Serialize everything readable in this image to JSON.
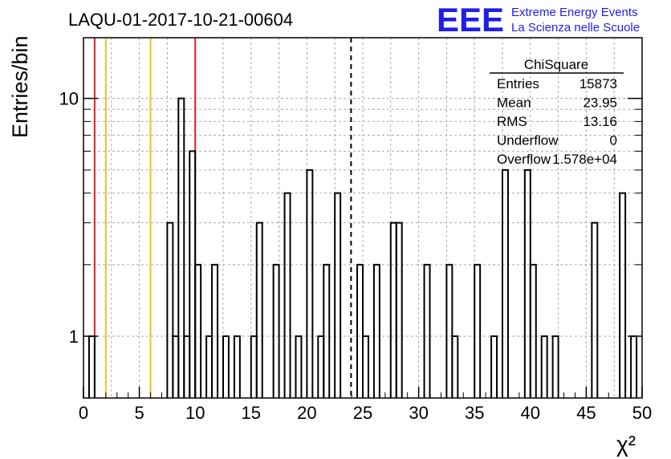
{
  "chart_data": {
    "type": "histogram",
    "title": "LAQU-01-2017-10-21-00604",
    "xlabel": "χ²",
    "ylabel": "Entries/bin",
    "xlim": [
      0,
      50
    ],
    "ylim": [
      0.55,
      18
    ],
    "y_scale": "log",
    "grid": true,
    "bin_width": 0.5,
    "x_ticks": [
      0,
      5,
      10,
      15,
      20,
      25,
      30,
      35,
      40,
      45,
      50
    ],
    "y_ticks": [
      1,
      10
    ],
    "bins": [
      {
        "x": 0.5,
        "y": 1
      },
      {
        "x": 7.5,
        "y": 3
      },
      {
        "x": 8.0,
        "y": 1
      },
      {
        "x": 8.5,
        "y": 10
      },
      {
        "x": 9.0,
        "y": 1
      },
      {
        "x": 9.5,
        "y": 6
      },
      {
        "x": 10.0,
        "y": 2
      },
      {
        "x": 11.0,
        "y": 1
      },
      {
        "x": 11.5,
        "y": 2
      },
      {
        "x": 12.5,
        "y": 1
      },
      {
        "x": 13.5,
        "y": 1
      },
      {
        "x": 15.0,
        "y": 1
      },
      {
        "x": 15.5,
        "y": 3
      },
      {
        "x": 17.0,
        "y": 2
      },
      {
        "x": 18.0,
        "y": 4
      },
      {
        "x": 19.0,
        "y": 1
      },
      {
        "x": 20.0,
        "y": 5
      },
      {
        "x": 21.0,
        "y": 1
      },
      {
        "x": 21.5,
        "y": 2
      },
      {
        "x": 22.5,
        "y": 4
      },
      {
        "x": 24.5,
        "y": 2
      },
      {
        "x": 25.0,
        "y": 1
      },
      {
        "x": 26.0,
        "y": 2
      },
      {
        "x": 27.5,
        "y": 3
      },
      {
        "x": 28.0,
        "y": 3
      },
      {
        "x": 30.5,
        "y": 2
      },
      {
        "x": 32.5,
        "y": 2
      },
      {
        "x": 33.0,
        "y": 1
      },
      {
        "x": 35.0,
        "y": 2
      },
      {
        "x": 36.5,
        "y": 1
      },
      {
        "x": 37.5,
        "y": 5
      },
      {
        "x": 39.5,
        "y": 5
      },
      {
        "x": 40.0,
        "y": 2
      },
      {
        "x": 41.0,
        "y": 1
      },
      {
        "x": 42.0,
        "y": 1
      },
      {
        "x": 45.5,
        "y": 3
      },
      {
        "x": 48.0,
        "y": 4
      },
      {
        "x": 49.0,
        "y": 1
      }
    ],
    "reference_lines": [
      {
        "x": 1,
        "color": "#e02020",
        "style": "solid"
      },
      {
        "x": 2,
        "color": "#f0c020",
        "style": "solid"
      },
      {
        "x": 6,
        "color": "#f0c020",
        "style": "solid"
      },
      {
        "x": 10,
        "color": "#e02020",
        "style": "solid"
      },
      {
        "x": 23.95,
        "color": "#000000",
        "style": "dashed"
      }
    ],
    "stats_box": {
      "title": "ChiSquare",
      "rows": [
        {
          "label": "Entries",
          "value": "15873"
        },
        {
          "label": "Mean",
          "value": "23.95"
        },
        {
          "label": "RMS",
          "value": "13.16"
        },
        {
          "label": "Underflow",
          "value": "0"
        },
        {
          "label": "Overflow",
          "value": "1.578e+04"
        }
      ]
    }
  },
  "logo": {
    "mark": "EEE",
    "line1": "Extreme Energy Events",
    "line2": "La Scienza nelle Scuole",
    "color": "#1f1fe6"
  }
}
